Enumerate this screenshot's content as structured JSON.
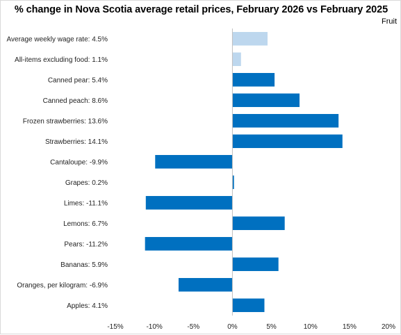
{
  "chart_data": {
    "type": "bar",
    "orientation": "horizontal",
    "title": "% change in Nova Scotia average retail prices, February 2026 vs February 2025",
    "subtitle": "Fruit",
    "categories": [
      "Average weekly wage rate: 4.5%",
      "All-items excluding food: 1.1%",
      "Canned pear: 5.4%",
      "Canned peach: 8.6%",
      "Frozen strawberries: 13.6%",
      "Strawberries: 14.1%",
      "Cantaloupe: -9.9%",
      "Grapes: 0.2%",
      "Limes: -11.1%",
      "Lemons: 6.7%",
      "Pears: -11.2%",
      "Bananas: 5.9%",
      "Oranges, per kilogram: -6.9%",
      "Apples: 4.1%"
    ],
    "values": [
      4.5,
      1.1,
      5.4,
      8.6,
      13.6,
      14.1,
      -9.9,
      0.2,
      -11.1,
      6.7,
      -11.2,
      5.9,
      -6.9,
      4.1
    ],
    "colors": [
      "#bdd7ee",
      "#bdd7ee",
      "#0070c0",
      "#0070c0",
      "#0070c0",
      "#0070c0",
      "#0070c0",
      "#0070c0",
      "#0070c0",
      "#0070c0",
      "#0070c0",
      "#0070c0",
      "#0070c0",
      "#0070c0"
    ],
    "xlim": [
      -15,
      20
    ],
    "xticks": [
      -15,
      -10,
      -5,
      0,
      5,
      10,
      15,
      20
    ],
    "xtick_labels": [
      "-15%",
      "-10%",
      "-5%",
      "0%",
      "5%",
      "10%",
      "15%",
      "20%"
    ],
    "grid": false
  }
}
